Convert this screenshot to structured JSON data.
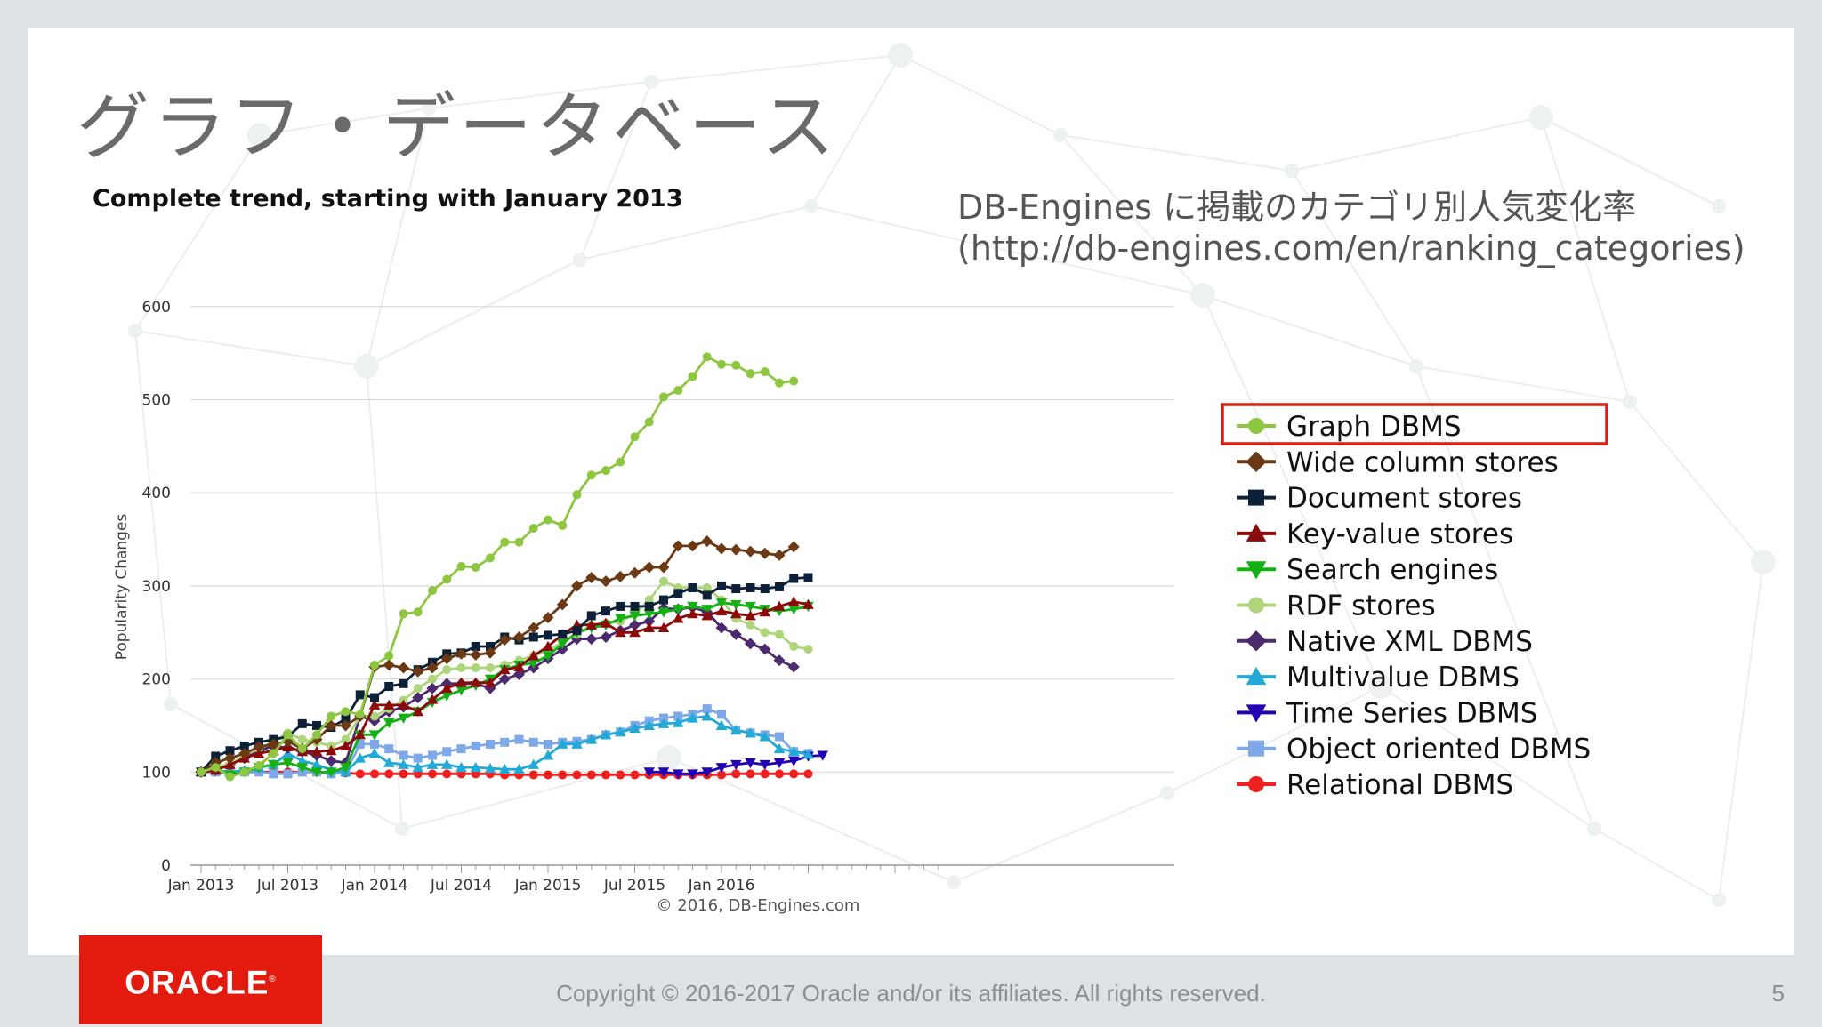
{
  "slide": {
    "title": "グラフ・データベース",
    "source_line1": "DB-Engines に掲載のカテゴリ別人気変化率",
    "source_line2": "(http://db-engines.com/en/ranking_categories)",
    "logo_text": "ORACLE",
    "copyright": "Copyright © 2016-2017 Oracle and/or its affiliates.  All rights reserved.",
    "page_number": "5",
    "highlight_color": "#e31b0f"
  },
  "chart_data": {
    "type": "line",
    "title": "Complete trend, starting with January 2013",
    "ylabel": "Popularity Changes",
    "xlabel": "",
    "credit": "© 2016, DB-Engines.com",
    "ylim": [
      0,
      600
    ],
    "yticks": [
      0,
      100,
      200,
      300,
      400,
      500,
      600
    ],
    "x_start": "Jan 2013",
    "x_tick_labels": [
      "Jan 2013",
      "Jul 2013",
      "Jan 2014",
      "Jul 2014",
      "Jan 2015",
      "Jul 2015",
      "Jan 2016"
    ],
    "x_tick_month_index": [
      0,
      6,
      12,
      18,
      24,
      30,
      36
    ],
    "highlighted_series": "Graph DBMS",
    "series": [
      {
        "name": "Graph DBMS",
        "color": "#8dc63f",
        "marker": "circle",
        "start": 0,
        "values": [
          100,
          105,
          95,
          100,
          107,
          120,
          140,
          125,
          140,
          160,
          165,
          162,
          215,
          225,
          270,
          272,
          295,
          307,
          321,
          320,
          330,
          347,
          347,
          362,
          371,
          365,
          398,
          419,
          424,
          433,
          460,
          476,
          503,
          510,
          525,
          546,
          538,
          537,
          528,
          530,
          518,
          520
        ]
      },
      {
        "name": "Wide column stores",
        "color": "#6b3a14",
        "marker": "diamond",
        "start": 0,
        "values": [
          100,
          110,
          115,
          120,
          127,
          130,
          133,
          125,
          135,
          150,
          150,
          160,
          213,
          215,
          212,
          208,
          212,
          222,
          227,
          226,
          228,
          242,
          245,
          255,
          266,
          280,
          300,
          309,
          305,
          310,
          314,
          320,
          320,
          343,
          343,
          348,
          340,
          339,
          337,
          335,
          333,
          342
        ]
      },
      {
        "name": "Document stores",
        "color": "#0c2138",
        "marker": "square",
        "start": 0,
        "values": [
          100,
          117,
          123,
          128,
          132,
          135,
          138,
          152,
          150,
          148,
          157,
          183,
          180,
          192,
          195,
          210,
          218,
          227,
          228,
          235,
          235,
          245,
          242,
          245,
          247,
          248,
          252,
          268,
          273,
          278,
          278,
          278,
          285,
          292,
          298,
          290,
          300,
          297,
          298,
          297,
          299,
          308,
          309
        ]
      },
      {
        "name": "Key-value stores",
        "color": "#8b0a0a",
        "marker": "triangle",
        "start": 0,
        "values": [
          100,
          102,
          108,
          115,
          120,
          123,
          127,
          122,
          122,
          123,
          128,
          140,
          172,
          172,
          172,
          165,
          178,
          190,
          196,
          196,
          196,
          210,
          213,
          225,
          235,
          248,
          258,
          258,
          260,
          250,
          250,
          255,
          255,
          265,
          270,
          268,
          273,
          270,
          268,
          272,
          278,
          283,
          280
        ]
      },
      {
        "name": "Search engines",
        "color": "#14b014",
        "marker": "triangle-down",
        "start": 0,
        "values": [
          100,
          102,
          97,
          100,
          105,
          108,
          110,
          105,
          100,
          100,
          105,
          140,
          140,
          153,
          158,
          165,
          175,
          182,
          188,
          193,
          200,
          210,
          215,
          217,
          225,
          238,
          250,
          255,
          258,
          265,
          268,
          270,
          272,
          275,
          278,
          275,
          282,
          280,
          278,
          275,
          273,
          275,
          278
        ]
      },
      {
        "name": "RDF stores",
        "color": "#aed57a",
        "marker": "circle",
        "start": 0,
        "values": [
          100,
          106,
          108,
          118,
          125,
          133,
          142,
          135,
          132,
          128,
          135,
          160,
          160,
          168,
          177,
          190,
          200,
          210,
          212,
          212,
          212,
          215,
          220,
          225,
          230,
          240,
          248,
          258,
          260,
          262,
          270,
          285,
          305,
          298,
          298,
          298,
          285,
          265,
          258,
          250,
          248,
          235,
          232
        ]
      },
      {
        "name": "Native XML DBMS",
        "color": "#4b2a6e",
        "marker": "diamond",
        "start": 0,
        "values": [
          100,
          102,
          108,
          115,
          123,
          128,
          126,
          122,
          118,
          112,
          110,
          160,
          155,
          165,
          170,
          180,
          190,
          195,
          195,
          195,
          190,
          200,
          205,
          212,
          222,
          232,
          243,
          243,
          245,
          252,
          258,
          262,
          276,
          275,
          277,
          272,
          255,
          248,
          238,
          232,
          220,
          213
        ]
      },
      {
        "name": "Multivalue DBMS",
        "color": "#22a9d6",
        "marker": "triangle",
        "start": 0,
        "values": [
          100,
          102,
          100,
          102,
          105,
          108,
          120,
          112,
          108,
          102,
          100,
          115,
          120,
          110,
          108,
          105,
          108,
          108,
          105,
          105,
          104,
          103,
          103,
          108,
          118,
          130,
          130,
          135,
          140,
          143,
          147,
          150,
          152,
          153,
          158,
          160,
          150,
          145,
          142,
          138,
          125,
          122,
          119
        ]
      },
      {
        "name": "Time Series DBMS",
        "color": "#2400b4",
        "marker": "triangle-down",
        "start": 31,
        "values": [
          100,
          100,
          98,
          98,
          100,
          105,
          108,
          110,
          108,
          110,
          112,
          117,
          118
        ]
      },
      {
        "name": "Object oriented DBMS",
        "color": "#7fa8e8",
        "marker": "square",
        "start": 0,
        "values": [
          100,
          100,
          98,
          100,
          100,
          98,
          98,
          100,
          100,
          98,
          100,
          130,
          130,
          125,
          118,
          115,
          118,
          122,
          125,
          128,
          130,
          132,
          135,
          132,
          130,
          132,
          133,
          135,
          140,
          143,
          150,
          155,
          158,
          160,
          162,
          168,
          162,
          145,
          142,
          140,
          138,
          122,
          120
        ]
      },
      {
        "name": "Relational DBMS",
        "color": "#f02020",
        "marker": "circle",
        "start": 0,
        "values": [
          100,
          100,
          100,
          100,
          100,
          100,
          100,
          100,
          100,
          99,
          99,
          98,
          98,
          98,
          98,
          98,
          98,
          98,
          98,
          98,
          98,
          97,
          97,
          97,
          97,
          97,
          97,
          97,
          97,
          97,
          97,
          97,
          97,
          97,
          97,
          97,
          97,
          98,
          98,
          98,
          98,
          98,
          98
        ]
      }
    ]
  }
}
